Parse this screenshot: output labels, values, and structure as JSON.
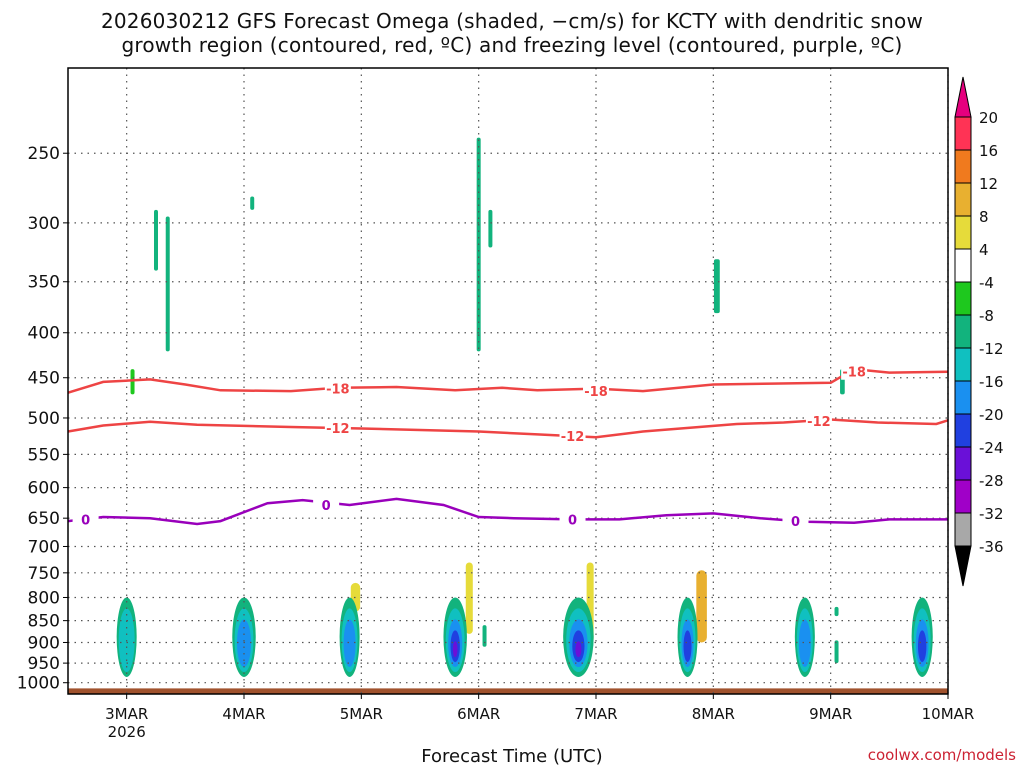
{
  "chart_data": {
    "type": "heatmap",
    "title_line1": "2026030212 GFS Forecast Omega (shaded, −cm/s) for KCTY with dendritic snow",
    "title_line2": "growth region (contoured, red, ºC) and freezing level (contoured, purple, ºC)",
    "xlabel": "Forecast Time (UTC)",
    "x_ticks": [
      "3MAR",
      "4MAR",
      "5MAR",
      "6MAR",
      "7MAR",
      "8MAR",
      "9MAR",
      "10MAR"
    ],
    "x_tick_values": [
      1,
      2,
      3,
      4,
      5,
      6,
      7,
      8
    ],
    "x_year_label": "2026",
    "xlim": [
      0.5,
      8.0
    ],
    "y_ticks": [
      250,
      300,
      350,
      400,
      450,
      500,
      550,
      600,
      650,
      700,
      750,
      800,
      850,
      900,
      950,
      1000
    ],
    "y_scale": "log-pressure",
    "ylim": [
      1030,
      200
    ],
    "colorbar": {
      "labels": [
        20,
        16,
        12,
        8,
        4,
        -4,
        -8,
        -12,
        -16,
        -20,
        -24,
        -28,
        -32,
        -36
      ],
      "colors": [
        "#ff3355",
        "#f07a1e",
        "#e8b030",
        "#e6db3a",
        "#ffffff",
        "#1ec81e",
        "#12b37d",
        "#10c0c0",
        "#1a90f0",
        "#2040e0",
        "#6a10d8",
        "#a000c8",
        "#a8a8a8"
      ],
      "top_color": "#e6007e",
      "bottom_color": "#000000"
    },
    "contours": {
      "dgz_minus18": {
        "color": "#ee4444",
        "label": "-18",
        "points": [
          [
            0.5,
            468
          ],
          [
            0.8,
            455
          ],
          [
            1.2,
            452
          ],
          [
            1.5,
            458
          ],
          [
            1.8,
            465
          ],
          [
            2.4,
            466
          ],
          [
            2.8,
            462
          ],
          [
            3.3,
            461
          ],
          [
            3.8,
            465
          ],
          [
            4.2,
            462
          ],
          [
            4.5,
            465
          ],
          [
            5.0,
            463
          ],
          [
            5.4,
            466
          ],
          [
            6.0,
            458
          ],
          [
            6.5,
            457
          ],
          [
            7.0,
            456
          ],
          [
            7.2,
            440
          ],
          [
            7.5,
            444
          ],
          [
            8.0,
            443
          ]
        ],
        "label_positions": [
          [
            2.8,
            463
          ],
          [
            5.0,
            466
          ],
          [
            7.2,
            443
          ]
        ]
      },
      "dgz_minus12": {
        "color": "#ee4444",
        "label": "-12",
        "points": [
          [
            0.5,
            518
          ],
          [
            0.8,
            510
          ],
          [
            1.2,
            505
          ],
          [
            1.6,
            509
          ],
          [
            2.4,
            512
          ],
          [
            3.0,
            514
          ],
          [
            3.5,
            516
          ],
          [
            4.0,
            518
          ],
          [
            4.5,
            522
          ],
          [
            5.0,
            526
          ],
          [
            5.4,
            518
          ],
          [
            5.8,
            513
          ],
          [
            6.2,
            508
          ],
          [
            6.6,
            506
          ],
          [
            7.0,
            502
          ],
          [
            7.4,
            506
          ],
          [
            7.9,
            508
          ],
          [
            8.0,
            503
          ]
        ],
        "label_positions": [
          [
            2.8,
            513
          ],
          [
            4.8,
            524
          ],
          [
            6.9,
            504
          ]
        ]
      },
      "freezing_0": {
        "color": "#9900bb",
        "label": "0",
        "points": [
          [
            0.5,
            655
          ],
          [
            0.8,
            648
          ],
          [
            1.2,
            650
          ],
          [
            1.6,
            660
          ],
          [
            1.8,
            655
          ],
          [
            2.2,
            625
          ],
          [
            2.5,
            620
          ],
          [
            2.9,
            628
          ],
          [
            3.3,
            618
          ],
          [
            3.7,
            628
          ],
          [
            4.0,
            648
          ],
          [
            4.3,
            650
          ],
          [
            4.8,
            652
          ],
          [
            5.2,
            652
          ],
          [
            5.6,
            645
          ],
          [
            6.0,
            642
          ],
          [
            6.4,
            650
          ],
          [
            6.8,
            656
          ],
          [
            7.2,
            658
          ],
          [
            7.5,
            652
          ],
          [
            8.0,
            652
          ]
        ],
        "label_positions": [
          [
            0.65,
            652
          ],
          [
            2.7,
            628
          ],
          [
            4.8,
            652
          ],
          [
            6.7,
            655
          ]
        ]
      }
    },
    "omega_blobs": [
      {
        "x": 1.0,
        "p": 905,
        "w": 0.04,
        "levels": [
          -8,
          -12
        ]
      },
      {
        "x": 2.0,
        "p": 915,
        "w": 0.1,
        "levels": [
          -8,
          -12,
          -16
        ]
      },
      {
        "x": 2.9,
        "p": 920,
        "w": 0.06,
        "levels": [
          -8,
          -12,
          -16
        ]
      },
      {
        "x": 3.8,
        "p": 910,
        "w": 0.1,
        "levels": [
          -8,
          -12,
          -16,
          -20,
          -24
        ]
      },
      {
        "x": 4.85,
        "p": 905,
        "w": 0.13,
        "levels": [
          -8,
          -12,
          -16,
          -20,
          -24
        ]
      },
      {
        "x": 5.78,
        "p": 910,
        "w": 0.07,
        "levels": [
          -8,
          -12,
          -16,
          -20
        ]
      },
      {
        "x": 6.78,
        "p": 915,
        "w": 0.07,
        "levels": [
          -8,
          -12,
          -16
        ]
      },
      {
        "x": 7.78,
        "p": 910,
        "w": 0.09,
        "levels": [
          -8,
          -12,
          -16,
          -20
        ]
      }
    ],
    "rising_patches": [
      {
        "x": 0.62,
        "p1": 200,
        "p2": 280,
        "w": 0.07,
        "level": 4
      },
      {
        "x": 0.82,
        "p1": 240,
        "p2": 300,
        "w": 0.03,
        "level": 4
      },
      {
        "x": 1.12,
        "p1": 320,
        "p2": 490,
        "w": 0.03,
        "level": 4
      },
      {
        "x": 1.45,
        "p1": 365,
        "p2": 440,
        "w": 0.05,
        "level": 4
      },
      {
        "x": 1.82,
        "p1": 395,
        "p2": 450,
        "w": 0.02,
        "level": 4
      },
      {
        "x": 2.4,
        "p1": 240,
        "p2": 265,
        "w": 0.02,
        "level": 4
      },
      {
        "x": 2.45,
        "p1": 345,
        "p2": 415,
        "w": 0.02,
        "level": 4
      },
      {
        "x": 2.95,
        "p1": 770,
        "p2": 830,
        "w": 0.08,
        "level": 8
      },
      {
        "x": 3.15,
        "p1": 860,
        "p2": 895,
        "w": 0.02,
        "level": 4
      },
      {
        "x": 3.98,
        "p1": 200,
        "p2": 470,
        "w": 0.04,
        "level": 4
      },
      {
        "x": 3.92,
        "p1": 730,
        "p2": 880,
        "w": 0.06,
        "level": 8
      },
      {
        "x": 4.2,
        "p1": 780,
        "p2": 830,
        "w": 0.05,
        "level": 4
      },
      {
        "x": 4.08,
        "p1": 480,
        "p2": 760,
        "w": 0.03,
        "level": 4
      },
      {
        "x": 4.95,
        "p1": 730,
        "p2": 900,
        "w": 0.06,
        "level": 8
      },
      {
        "x": 5.08,
        "p1": 560,
        "p2": 640,
        "w": 0.02,
        "level": 4
      },
      {
        "x": 5.1,
        "p1": 800,
        "p2": 880,
        "w": 0.03,
        "level": 4
      },
      {
        "x": 5.06,
        "p1": 370,
        "p2": 440,
        "w": 0.02,
        "level": 4
      },
      {
        "x": 5.9,
        "p1": 745,
        "p2": 900,
        "w": 0.09,
        "level": 12
      },
      {
        "x": 6.1,
        "p1": 790,
        "p2": 820,
        "w": 0.07,
        "level": 4
      },
      {
        "x": 5.75,
        "p1": 380,
        "p2": 395,
        "w": 0.04,
        "level": 4
      },
      {
        "x": 6.23,
        "p1": 520,
        "p2": 540,
        "w": 0.03,
        "level": 4
      },
      {
        "x": 6.62,
        "p1": 260,
        "p2": 430,
        "w": 0.08,
        "level": 4
      },
      {
        "x": 6.96,
        "p1": 500,
        "p2": 560,
        "w": 0.05,
        "level": 4
      },
      {
        "x": 6.8,
        "p1": 730,
        "p2": 810,
        "w": 0.03,
        "level": 4
      },
      {
        "x": 7.18,
        "p1": 545,
        "p2": 590,
        "w": 0.03,
        "level": 4
      },
      {
        "x": 7.15,
        "p1": 690,
        "p2": 810,
        "w": 0.03,
        "level": 4
      },
      {
        "x": 7.95,
        "p1": 360,
        "p2": 500,
        "w": 0.03,
        "level": 4
      }
    ],
    "sinking_patches": [
      {
        "x": 1.05,
        "p1": 440,
        "p2": 470,
        "w": 0.015,
        "level": -4
      },
      {
        "x": 1.25,
        "p1": 290,
        "p2": 340,
        "w": 0.015,
        "level": -8
      },
      {
        "x": 1.35,
        "p1": 295,
        "p2": 420,
        "w": 0.015,
        "level": -8
      },
      {
        "x": 2.07,
        "p1": 280,
        "p2": 290,
        "w": 0.012,
        "level": -8
      },
      {
        "x": 4.0,
        "p1": 240,
        "p2": 420,
        "w": 0.03,
        "level": -8
      },
      {
        "x": 4.1,
        "p1": 290,
        "p2": 320,
        "w": 0.02,
        "level": -8
      },
      {
        "x": 4.05,
        "p1": 860,
        "p2": 910,
        "w": 0.012,
        "level": -8
      },
      {
        "x": 6.03,
        "p1": 330,
        "p2": 380,
        "w": 0.05,
        "level": -8
      },
      {
        "x": 7.1,
        "p1": 440,
        "p2": 470,
        "w": 0.04,
        "level": -8
      },
      {
        "x": 7.05,
        "p1": 820,
        "p2": 840,
        "w": 0.03,
        "level": -8
      },
      {
        "x": 7.05,
        "p1": 895,
        "p2": 950,
        "w": 0.03,
        "level": -8
      }
    ],
    "ground_p": 1015
  },
  "credit": "coolwx.com/models"
}
